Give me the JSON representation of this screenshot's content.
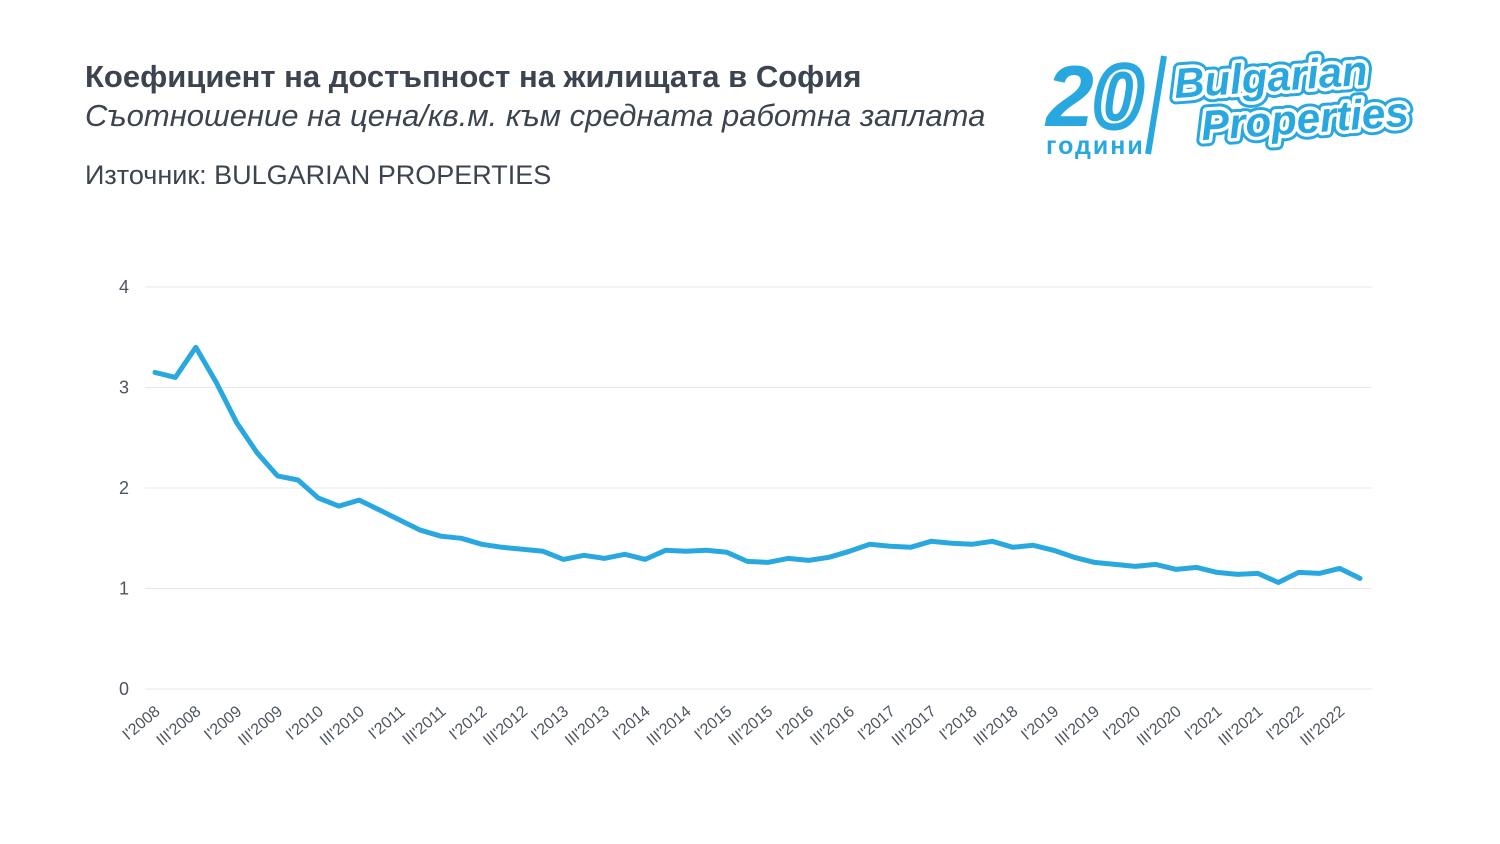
{
  "header": {
    "title": "Коефициент на достъпност на жилищата в София",
    "subtitle": "Съотношение на цена/кв.м. към средната работна заплата",
    "source": "Източник: BULGARIAN PROPERTIES"
  },
  "logo": {
    "digit_2": "2",
    "digit_0": "0",
    "years_label": "години",
    "brand_line1": "Bulgarian",
    "brand_line2": "Properties",
    "color": "#29a8e0"
  },
  "chart_data": {
    "type": "line",
    "title": "Коефициент на достъпност на жилищата в София",
    "subtitle": "Съотношение на цена/кв.м. към средната работна заплата",
    "source": "BULGARIAN PROPERTIES",
    "frequency": "quarterly",
    "x_start": "I'2008",
    "x_end": "IV'2022",
    "x_tick_labels": [
      "I'2008",
      "III'2008",
      "I'2009",
      "III'2009",
      "I'2010",
      "III'2010",
      "I'2011",
      "III'2011",
      "I'2012",
      "III'2012",
      "I'2013",
      "III'2013",
      "I'2014",
      "III'2014",
      "I'2015",
      "III'2015",
      "I'2016",
      "III'2016",
      "I'2017",
      "III'2017",
      "I'2018",
      "III'2018",
      "I'2019",
      "III'2019",
      "I'2020",
      "III'2020",
      "I'2021",
      "III'2021",
      "I'2022",
      "III'2022"
    ],
    "tick_every_n_points": 2,
    "values": [
      3.15,
      3.1,
      3.4,
      3.05,
      2.65,
      2.35,
      2.12,
      2.08,
      1.9,
      1.82,
      1.88,
      1.78,
      1.68,
      1.58,
      1.52,
      1.5,
      1.44,
      1.41,
      1.39,
      1.37,
      1.29,
      1.33,
      1.3,
      1.34,
      1.29,
      1.38,
      1.37,
      1.38,
      1.36,
      1.27,
      1.26,
      1.3,
      1.28,
      1.31,
      1.37,
      1.44,
      1.42,
      1.41,
      1.47,
      1.45,
      1.44,
      1.47,
      1.41,
      1.43,
      1.38,
      1.31,
      1.26,
      1.24,
      1.22,
      1.24,
      1.19,
      1.21,
      1.16,
      1.14,
      1.15,
      1.06,
      1.16,
      1.15,
      1.2,
      1.1
    ],
    "ylim": [
      0,
      4
    ],
    "yticks": [
      0,
      1,
      2,
      3,
      4
    ],
    "grid": true,
    "legend": false,
    "line_color": "#29a8e0",
    "grid_color": "#e7e7e7"
  }
}
